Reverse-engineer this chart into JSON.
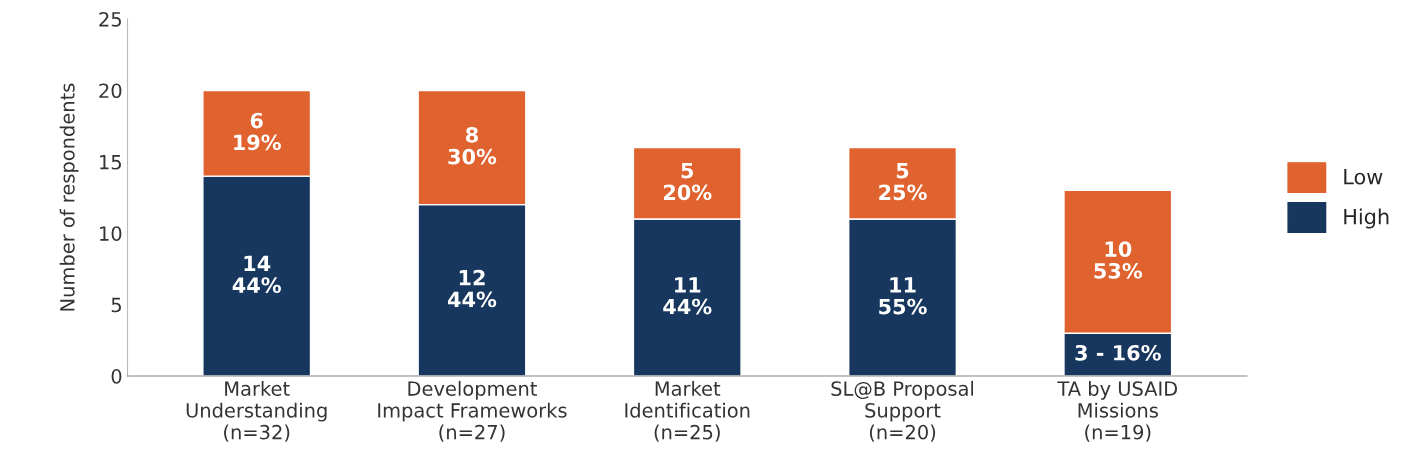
{
  "chart_data": {
    "type": "bar",
    "stacked": true,
    "ylabel": "Number of respondents",
    "categories": [
      "Market\nUnderstanding\n(n=32)",
      "Development\nImpact Frameworks\n(n=27)",
      "Market\nIdentification\n(n=25)",
      "SL@B Proposal\nSupport\n(n=20)",
      "TA by USAID\nMissions\n(n=19)"
    ],
    "series": [
      {
        "name": "High",
        "color": "#17375e",
        "values": [
          14,
          12,
          11,
          11,
          3
        ],
        "value_labels": [
          "14\n44%",
          "12\n44%",
          "11\n44%",
          "11\n55%",
          "3 - 16%"
        ]
      },
      {
        "name": "Low",
        "color": "#e0622f",
        "values": [
          6,
          8,
          5,
          5,
          10
        ],
        "value_labels": [
          "6\n19%",
          "8\n30%",
          "5\n20%",
          "5\n25%",
          "10\n53%"
        ]
      }
    ],
    "ylim": [
      0,
      25
    ],
    "yticks": [
      0,
      5,
      10,
      15,
      20,
      25
    ],
    "grid": false,
    "legend": "right"
  }
}
